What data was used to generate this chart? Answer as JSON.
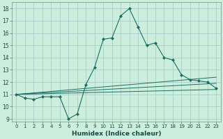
{
  "title": "",
  "xlabel": "Humidex (Indice chaleur)",
  "ylabel": "",
  "bg_color": "#cceedd",
  "grid_color": "#aacccc",
  "line_color": "#1a6e60",
  "xlim": [
    -0.5,
    23.5
  ],
  "ylim": [
    8.8,
    18.5
  ],
  "yticks": [
    9,
    10,
    11,
    12,
    13,
    14,
    15,
    16,
    17,
    18
  ],
  "xticks": [
    0,
    1,
    2,
    3,
    4,
    5,
    6,
    7,
    8,
    9,
    10,
    11,
    12,
    13,
    14,
    15,
    16,
    17,
    18,
    19,
    20,
    21,
    22,
    23
  ],
  "main_x": [
    0,
    1,
    2,
    3,
    4,
    5,
    6,
    7,
    8,
    9,
    10,
    11,
    12,
    13,
    14,
    15,
    16,
    17,
    18,
    19,
    20,
    21,
    22,
    23
  ],
  "main_y": [
    11.0,
    10.7,
    10.6,
    10.8,
    10.8,
    10.8,
    9.0,
    9.4,
    11.8,
    13.2,
    15.5,
    15.6,
    17.4,
    18.0,
    16.5,
    15.0,
    15.2,
    14.0,
    13.8,
    12.6,
    12.2,
    12.1,
    12.0,
    11.5
  ],
  "line2_x": [
    0,
    23
  ],
  "line2_y": [
    11.0,
    11.4
  ],
  "line3_x": [
    0,
    23
  ],
  "line3_y": [
    11.0,
    11.9
  ],
  "line4_x": [
    0,
    23
  ],
  "line4_y": [
    11.0,
    12.4
  ]
}
